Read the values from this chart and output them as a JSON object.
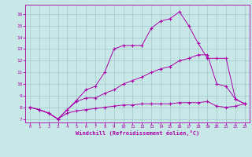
{
  "xlabel": "Windchill (Refroidissement éolien,°C)",
  "ylabel": "",
  "background_color": "#c8e8e8",
  "line_color": "#aa00aa",
  "grid_color": "#a0c8c8",
  "xlim": [
    -0.5,
    23.5
  ],
  "ylim": [
    6.7,
    16.8
  ],
  "xticks": [
    0,
    1,
    2,
    3,
    4,
    5,
    6,
    7,
    8,
    9,
    10,
    11,
    12,
    13,
    14,
    15,
    16,
    17,
    18,
    19,
    20,
    21,
    22,
    23
  ],
  "yticks": [
    7,
    8,
    9,
    10,
    11,
    12,
    13,
    14,
    15,
    16
  ],
  "series": [
    {
      "x": [
        0,
        1,
        2,
        3,
        4,
        5,
        6,
        7,
        8,
        9,
        10,
        11,
        12,
        13,
        14,
        15,
        16,
        17,
        18,
        19,
        20,
        21,
        22,
        23
      ],
      "y": [
        8.0,
        7.8,
        7.5,
        7.0,
        7.8,
        8.6,
        9.5,
        9.8,
        11.0,
        13.0,
        13.3,
        13.3,
        13.3,
        14.8,
        15.4,
        15.6,
        16.2,
        15.0,
        13.5,
        12.2,
        12.2,
        12.2,
        8.7,
        8.3
      ]
    },
    {
      "x": [
        0,
        1,
        2,
        3,
        4,
        5,
        6,
        7,
        8,
        9,
        10,
        11,
        12,
        13,
        14,
        15,
        16,
        17,
        18,
        19,
        20,
        21,
        22,
        23
      ],
      "y": [
        8.0,
        7.8,
        7.5,
        7.0,
        7.8,
        8.5,
        8.8,
        8.8,
        9.2,
        9.5,
        10.0,
        10.3,
        10.6,
        11.0,
        11.3,
        11.5,
        12.0,
        12.2,
        12.5,
        12.5,
        10.0,
        9.8,
        8.7,
        8.3
      ]
    },
    {
      "x": [
        0,
        1,
        2,
        3,
        4,
        5,
        6,
        7,
        8,
        9,
        10,
        11,
        12,
        13,
        14,
        15,
        16,
        17,
        18,
        19,
        20,
        21,
        22,
        23
      ],
      "y": [
        8.0,
        7.8,
        7.5,
        7.0,
        7.5,
        7.7,
        7.8,
        7.9,
        8.0,
        8.1,
        8.2,
        8.2,
        8.3,
        8.3,
        8.3,
        8.3,
        8.4,
        8.4,
        8.4,
        8.5,
        8.1,
        8.0,
        8.1,
        8.3
      ]
    }
  ]
}
